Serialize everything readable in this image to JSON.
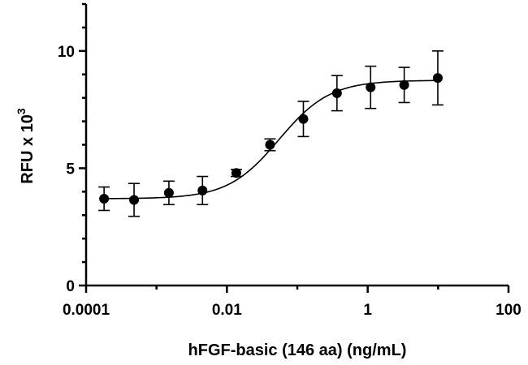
{
  "chart_data": {
    "type": "scatter",
    "xlabel": "hFGF-basic (146 aa) (ng/mL)",
    "ylabel_text": "RFU x 10",
    "ylabel_sup": "3",
    "xscale": "log",
    "xlim": [
      0.0001,
      100
    ],
    "ylim": [
      0,
      12
    ],
    "x_ticks": [
      0.0001,
      0.01,
      1,
      100
    ],
    "x_tick_labels": [
      "0.0001",
      "0.01",
      "1",
      "100"
    ],
    "y_ticks": [
      0,
      5,
      10
    ],
    "y_tick_labels": [
      "0",
      "5",
      "10"
    ],
    "grid": false,
    "series": [
      {
        "x": [
          0.00018,
          0.00048,
          0.0015,
          0.0045,
          0.0136,
          0.041,
          0.122,
          0.366,
          1.1,
          3.3,
          9.9
        ],
        "y": [
          3.7,
          3.65,
          3.95,
          4.05,
          4.8,
          6.0,
          7.1,
          8.2,
          8.45,
          8.55,
          8.85
        ],
        "err": [
          0.5,
          0.7,
          0.5,
          0.6,
          0.15,
          0.25,
          0.75,
          0.75,
          0.9,
          0.75,
          1.15
        ]
      }
    ],
    "fit": {
      "model": "4PL",
      "bottom": 3.7,
      "top": 8.75,
      "ec50": 0.055,
      "hill": 1.2
    }
  }
}
